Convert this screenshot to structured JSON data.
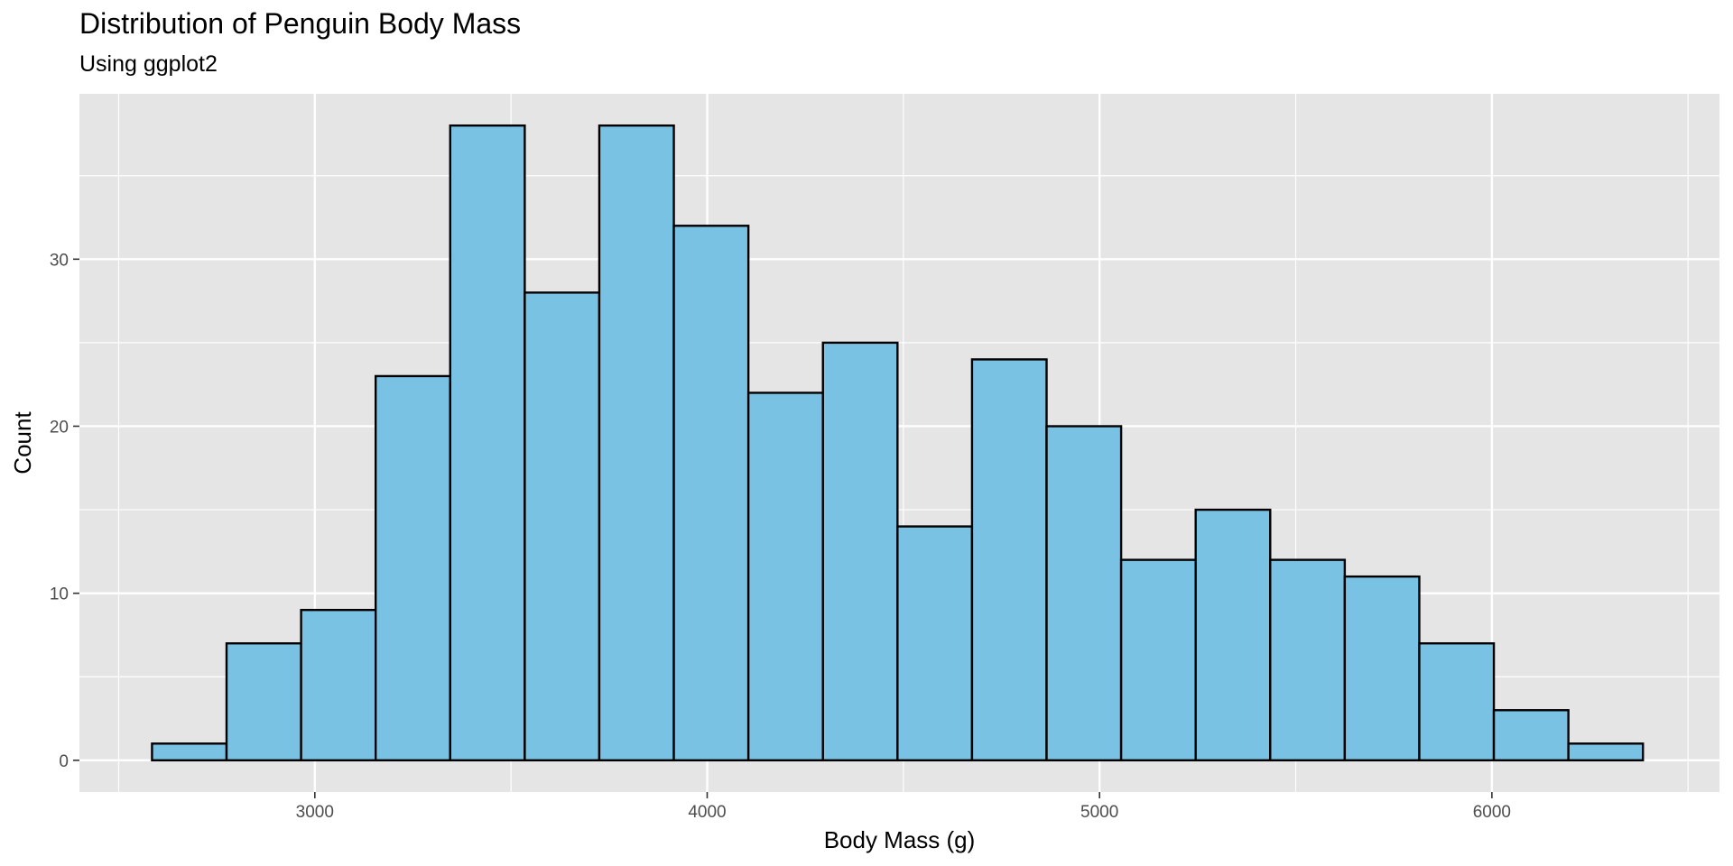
{
  "chart_data": {
    "type": "bar",
    "title": "Distribution of Penguin Body Mass",
    "subtitle": "Using ggplot2",
    "xlabel": "Body Mass (g)",
    "ylabel": "Count",
    "bin_width": 190,
    "bins": [
      {
        "x0": 2585,
        "x1": 2775,
        "count": 1
      },
      {
        "x0": 2775,
        "x1": 2965,
        "count": 7
      },
      {
        "x0": 2965,
        "x1": 3155,
        "count": 9
      },
      {
        "x0": 3155,
        "x1": 3345,
        "count": 23
      },
      {
        "x0": 3345,
        "x1": 3535,
        "count": 38
      },
      {
        "x0": 3535,
        "x1": 3725,
        "count": 28
      },
      {
        "x0": 3725,
        "x1": 3915,
        "count": 38
      },
      {
        "x0": 3915,
        "x1": 4105,
        "count": 32
      },
      {
        "x0": 4105,
        "x1": 4295,
        "count": 22
      },
      {
        "x0": 4295,
        "x1": 4485,
        "count": 25
      },
      {
        "x0": 4485,
        "x1": 4675,
        "count": 14
      },
      {
        "x0": 4675,
        "x1": 4865,
        "count": 24
      },
      {
        "x0": 4865,
        "x1": 5055,
        "count": 20
      },
      {
        "x0": 5055,
        "x1": 5245,
        "count": 12
      },
      {
        "x0": 5245,
        "x1": 5435,
        "count": 15
      },
      {
        "x0": 5435,
        "x1": 5625,
        "count": 12
      },
      {
        "x0": 5625,
        "x1": 5815,
        "count": 11
      },
      {
        "x0": 5815,
        "x1": 6005,
        "count": 7
      },
      {
        "x0": 6005,
        "x1": 6195,
        "count": 3
      },
      {
        "x0": 6195,
        "x1": 6385,
        "count": 1
      }
    ],
    "x_ticks": [
      3000,
      4000,
      5000,
      6000
    ],
    "y_ticks": [
      0,
      10,
      20,
      30
    ],
    "xlim": [
      2400,
      6580
    ],
    "ylim": [
      -1.9,
      39.9
    ],
    "grid": true,
    "colors": {
      "bar_fill": "#7AC2E4",
      "bar_stroke": "#000000",
      "panel_background": "#E5E5E5",
      "grid": "#FFFFFF"
    }
  }
}
